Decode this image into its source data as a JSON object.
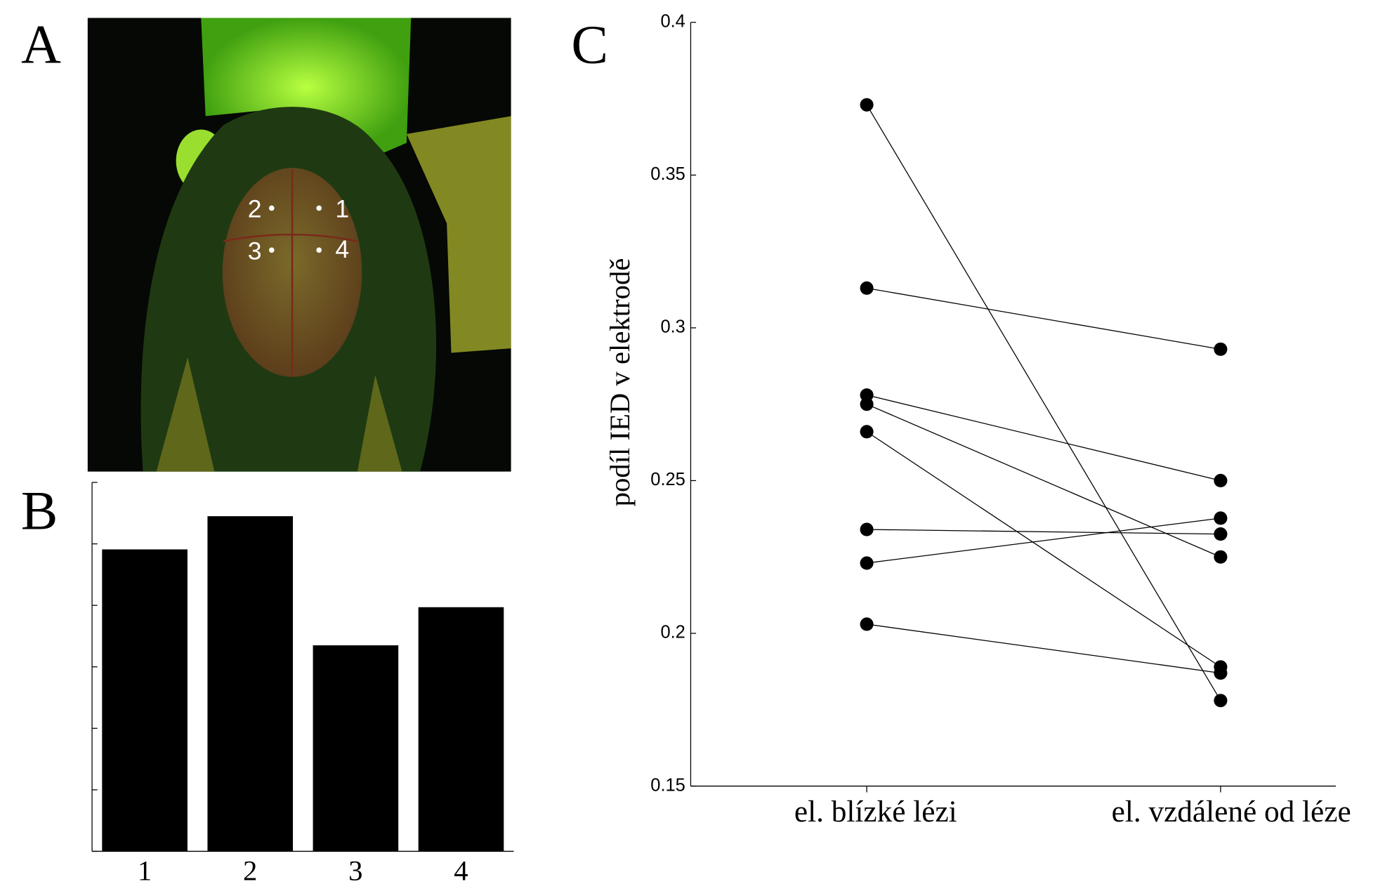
{
  "panel_labels": [
    "A",
    "B",
    "C"
  ],
  "photo": {
    "electrode_labels": [
      "1",
      "2",
      "3",
      "4"
    ]
  },
  "chart_data": [
    {
      "type": "bar",
      "categories": [
        "1",
        "2",
        "3",
        "4"
      ],
      "values": [
        4.91,
        5.45,
        3.35,
        3.97
      ],
      "color": "#000000",
      "ylim": [
        0,
        6
      ],
      "yticks": [
        0,
        1,
        2,
        3,
        4,
        5,
        6
      ]
    },
    {
      "type": "line",
      "ylabel": "podíl IED v elektrodě",
      "categories": [
        "el. blízké lézi",
        "el. vzdálené od léze"
      ],
      "ylim": [
        0.15,
        0.4
      ],
      "yticks": [
        0.15,
        0.2,
        0.25,
        0.3,
        0.35,
        0.4
      ],
      "color": "#000000",
      "series": [
        {
          "values": [
            0.373,
            0.178
          ]
        },
        {
          "values": [
            0.313,
            0.293
          ]
        },
        {
          "values": [
            0.278,
            0.25
          ]
        },
        {
          "values": [
            0.275,
            0.225
          ]
        },
        {
          "values": [
            0.266,
            0.189
          ]
        },
        {
          "values": [
            0.234,
            0.2325
          ]
        },
        {
          "values": [
            0.223,
            0.2377
          ]
        },
        {
          "values": [
            0.203,
            0.187
          ]
        }
      ]
    }
  ]
}
